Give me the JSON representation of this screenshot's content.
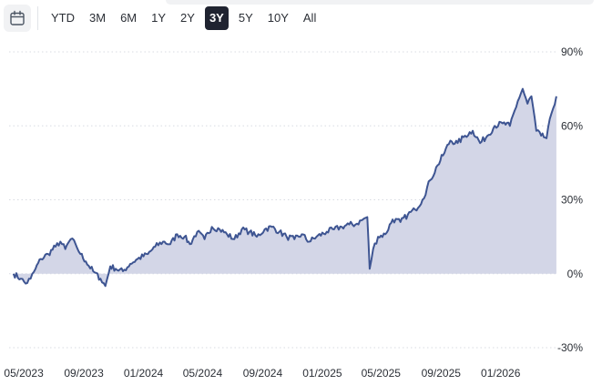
{
  "toolbar": {
    "calendar_icon": "calendar-icon",
    "ranges": [
      "YTD",
      "3M",
      "6M",
      "1Y",
      "2Y",
      "3Y",
      "5Y",
      "10Y",
      "All"
    ],
    "active_range": "3Y"
  },
  "chart_data": {
    "type": "area",
    "title": "",
    "xlabel": "",
    "ylabel": "",
    "y_unit": "%",
    "ylim": [
      -30,
      90
    ],
    "y_ticks": [
      -30,
      0,
      30,
      60,
      90
    ],
    "y_tick_labels": [
      "-30%",
      "0%",
      "30%",
      "60%",
      "90%"
    ],
    "x_tick_labels": [
      "05/2023",
      "09/2023",
      "01/2024",
      "05/2024",
      "09/2024",
      "01/2025",
      "05/2025",
      "09/2025",
      "01/2026"
    ],
    "x_range": [
      "2023-04",
      "2026-04"
    ],
    "grid": true,
    "line_color": "#3e5592",
    "fill_color": "#d3d6e7",
    "series": [
      {
        "x": [
          "2023-04-10",
          "2023-04-25",
          "2023-05-05",
          "2023-05-15",
          "2023-05-25",
          "2023-06-05",
          "2023-06-20",
          "2023-07-05",
          "2023-07-15",
          "2023-07-25",
          "2023-08-05",
          "2023-08-15",
          "2023-08-25",
          "2023-09-05",
          "2023-09-20",
          "2023-10-05",
          "2023-10-15",
          "2023-10-25",
          "2023-11-05",
          "2023-11-20",
          "2023-12-05",
          "2023-12-20",
          "2024-01-10",
          "2024-01-25",
          "2024-02-10",
          "2024-02-25",
          "2024-03-10",
          "2024-03-25",
          "2024-04-05",
          "2024-04-20",
          "2024-05-05",
          "2024-05-20",
          "2024-06-05",
          "2024-06-20",
          "2024-07-05",
          "2024-07-20",
          "2024-08-05",
          "2024-08-20",
          "2024-09-05",
          "2024-09-20",
          "2024-10-05",
          "2024-10-20",
          "2024-11-05",
          "2024-11-20",
          "2024-12-05",
          "2024-12-20",
          "2025-01-10",
          "2025-01-25",
          "2025-02-10",
          "2025-02-25",
          "2025-03-10",
          "2025-03-25",
          "2025-04-03",
          "2025-04-08",
          "2025-04-15",
          "2025-04-25",
          "2025-05-10",
          "2025-05-25",
          "2025-06-10",
          "2025-06-25",
          "2025-07-10",
          "2025-07-25",
          "2025-08-10",
          "2025-08-25",
          "2025-09-05",
          "2025-09-20",
          "2025-10-05",
          "2025-10-20",
          "2025-11-05",
          "2025-11-20",
          "2025-12-05",
          "2025-12-20",
          "2026-01-05",
          "2026-01-20",
          "2026-02-05",
          "2026-02-15",
          "2026-02-25",
          "2026-03-05",
          "2026-03-15",
          "2026-03-25",
          "2026-04-05",
          "2026-04-15",
          "2026-04-25"
        ],
        "y": [
          0,
          -2,
          -4,
          -2,
          2,
          6,
          8,
          11,
          13,
          10,
          14,
          12,
          8,
          5,
          1,
          -2,
          -5,
          3,
          2,
          1,
          4,
          6,
          8,
          11,
          13,
          12,
          16,
          15,
          12,
          17,
          14,
          19,
          18,
          16,
          14,
          18,
          17,
          15,
          18,
          19,
          17,
          15,
          14,
          16,
          13,
          15,
          17,
          18,
          19,
          20,
          20,
          22,
          23,
          2,
          10,
          15,
          16,
          22,
          21,
          24,
          26,
          30,
          38,
          44,
          48,
          54,
          53,
          56,
          58,
          53,
          56,
          60,
          61,
          60,
          70,
          75,
          69,
          72,
          58,
          56,
          55,
          65,
          72
        ]
      }
    ]
  }
}
